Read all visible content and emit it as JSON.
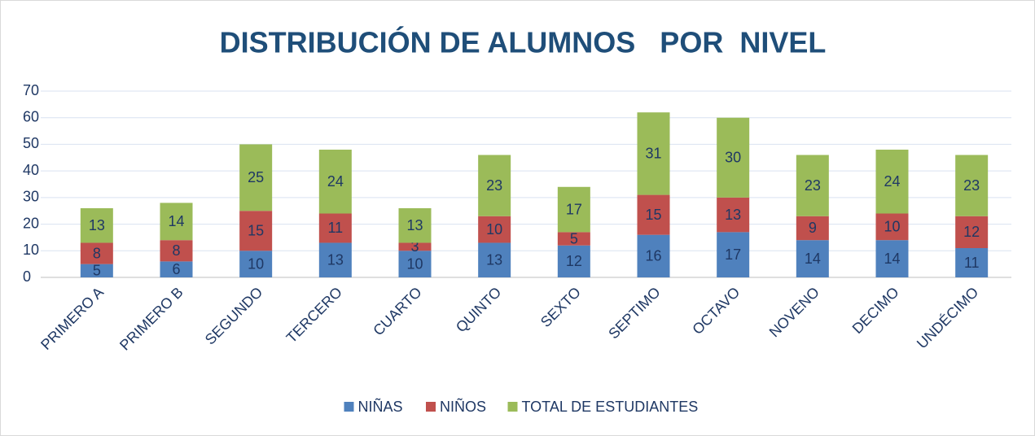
{
  "chart_data": {
    "type": "stacked_bar",
    "title": "DISTRIBUCIÓN DE ALUMNOS   POR  NIVEL",
    "categories": [
      "PRIMERO A",
      "PRIMERO B",
      "SEGUNDO",
      "TERCERO",
      "CUARTO",
      "QUINTO",
      "SEXTO",
      "SEPTIMO",
      "OCTAVO",
      "NOVENO",
      "DECIMO",
      "UNDÉCIMO"
    ],
    "series": [
      {
        "name": "NIÑAS",
        "color": "#4f81bd",
        "values": [
          5,
          6,
          10,
          13,
          10,
          13,
          12,
          16,
          17,
          14,
          14,
          11
        ]
      },
      {
        "name": "NIÑOS",
        "color": "#c0504d",
        "values": [
          8,
          8,
          15,
          11,
          3,
          10,
          5,
          15,
          13,
          9,
          10,
          12
        ]
      },
      {
        "name": "TOTAL DE ESTUDIANTES",
        "color": "#9bbb59",
        "values": [
          13,
          14,
          25,
          24,
          13,
          23,
          17,
          31,
          30,
          23,
          24,
          23
        ]
      }
    ],
    "ylim": [
      0,
      70
    ],
    "yticks": [
      0,
      10,
      20,
      30,
      40,
      50,
      60,
      70
    ],
    "grid": true,
    "legend": "bottom"
  }
}
